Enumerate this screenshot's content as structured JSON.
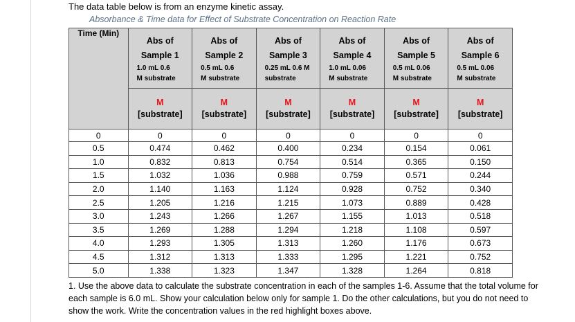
{
  "intro_text": "The data table below is from an enzyme kinetic assay.",
  "caption": "Absorbance & Time data for Effect of Substrate Concentration on Reaction Rate",
  "table": {
    "time_header": "Time (Min)",
    "samples": [
      {
        "line1": "Abs of",
        "line2": "Sample 1",
        "desc1": "1.0 mL 0.6",
        "desc2": "M substrate"
      },
      {
        "line1": "Abs of",
        "line2": "Sample 2",
        "desc1": "0.5 mL 0.6",
        "desc2": "M substrate"
      },
      {
        "line1": "Abs of",
        "line2": "Sample 3",
        "desc1": "0.25 mL 0.6 M",
        "desc2": "substrate"
      },
      {
        "line1": "Abs of",
        "line2": "Sample 4",
        "desc1": "1.0 mL 0.06",
        "desc2": "M substrate"
      },
      {
        "line1": "Abs of",
        "line2": "Sample 5",
        "desc1": "0.5 mL 0.06",
        "desc2": "M substrate"
      },
      {
        "line1": "Abs of",
        "line2": "Sample 6",
        "desc1": "0.5 mL 0.06",
        "desc2": "M substrate"
      }
    ],
    "conc_unit": "M",
    "conc_label": "[substrate]",
    "zero_row": [
      "0",
      "0",
      "0",
      "0",
      "0",
      "0",
      "0"
    ],
    "rows": [
      [
        "0.5",
        "0.474",
        "0.462",
        "0.400",
        "0.234",
        "0.154",
        "0.061"
      ],
      [
        "1.0",
        "0.832",
        "0.813",
        "0.754",
        "0.514",
        "0.365",
        "0.150"
      ],
      [
        "1.5",
        "1.032",
        "1.036",
        "0.988",
        "0.759",
        "0.571",
        "0.244"
      ],
      [
        "2.0",
        "1.140",
        "1.163",
        "1.124",
        "0.928",
        "0.752",
        "0.340"
      ],
      [
        "2.5",
        "1.205",
        "1.216",
        "1.215",
        "1.073",
        "0.889",
        "0.428"
      ],
      [
        "3.0",
        "1.243",
        "1.266",
        "1.267",
        "1.155",
        "1.013",
        "0.518"
      ],
      [
        "3.5",
        "1.269",
        "1.288",
        "1.294",
        "1.218",
        "1.108",
        "0.597"
      ],
      [
        "4.0",
        "1.293",
        "1.305",
        "1.313",
        "1.260",
        "1.176",
        "0.673"
      ],
      [
        "4.5",
        "1.312",
        "1.313",
        "1.333",
        "1.295",
        "1.221",
        "0.752"
      ],
      [
        "5.0",
        "1.338",
        "1.323",
        "1.347",
        "1.328",
        "1.264",
        "0.818"
      ]
    ]
  },
  "question_1": "1.  Use the above data to calculate the substrate concentration in each of the samples 1-6.  Assume that the total volume for each sample is 6.0 mL.  Show your calculation below only for sample 1.  Do the other calculations, but you do not need to show the work.  Write the concentration values in the red highlight boxes above."
}
